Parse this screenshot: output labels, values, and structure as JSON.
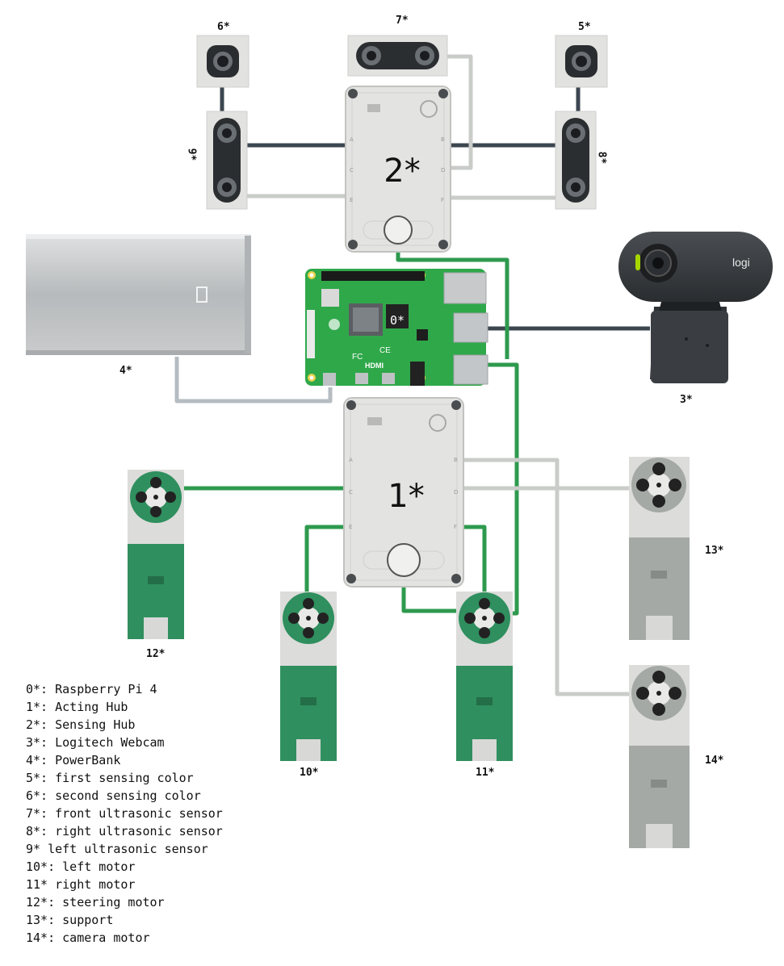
{
  "labels": {
    "pi": "0*",
    "acting_hub": "1*",
    "sensing_hub": "2*",
    "webcam": "3*",
    "powerbank": "4*",
    "color5": "5*",
    "color6": "6*",
    "us7": "7*",
    "us8": "8*",
    "us9": "9*",
    "motor10": "10*",
    "motor11": "11*",
    "motor12": "12*",
    "motor13": "13*",
    "motor14": "14*"
  },
  "port_letters": [
    "A",
    "B",
    "C",
    "D",
    "E",
    "F"
  ],
  "webcam_brand": "logi",
  "pi_text": {
    "hdmi": "HDMI",
    "fc": "FC",
    "ce": "CE"
  },
  "legend": [
    "0*: Raspberry Pi 4",
    "1*: Acting Hub",
    "2*: Sensing Hub",
    "3*: Logitech Webcam",
    "4*: PowerBank",
    "5*: first sensing color",
    "6*: second sensing color",
    "7*: front ultrasonic sensor",
    "8*: right ultrasonic sensor",
    "9* left ultrasonic sensor",
    "10*: left motor",
    "11* right motor",
    "12*: steering motor",
    "13*: support",
    "14*: camera motor"
  ],
  "colors": {
    "green_cable": "#2e9a4e",
    "dark_cable": "#3b4650",
    "light_cable": "#c9ccc8",
    "hub_body": "#e3e3e1",
    "motor_green": "#2f8f5e",
    "motor_gray": "#a5a9a6"
  }
}
